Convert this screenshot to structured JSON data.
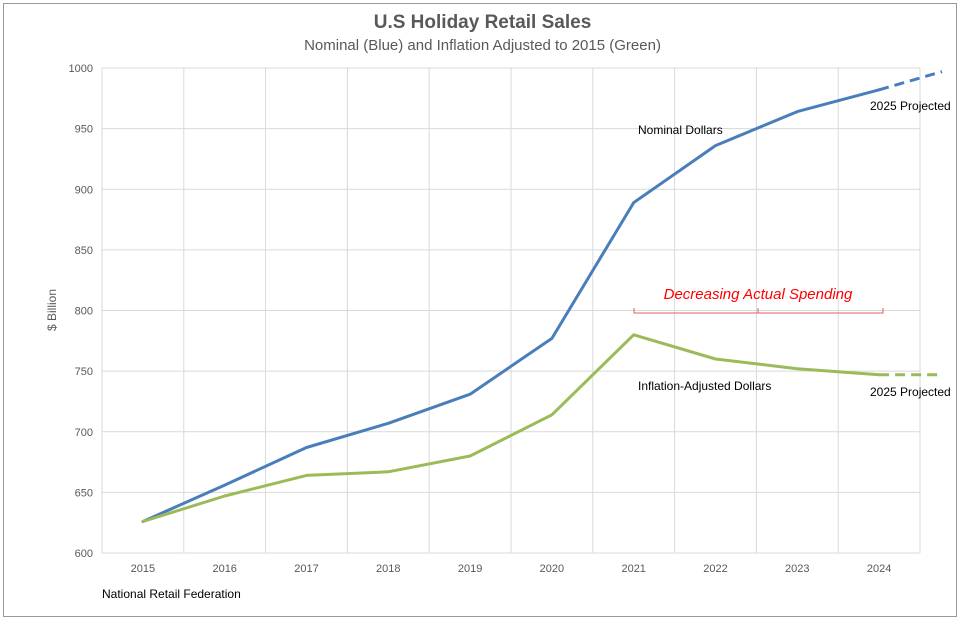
{
  "chart_data": {
    "type": "line",
    "title": "U.S Holiday Retail Sales",
    "subtitle": "Nominal (Blue) and Inflation Adjusted to 2015 (Green)",
    "xlabel": "",
    "ylabel": "$ Billion",
    "ylim": [
      600,
      1000
    ],
    "yticks": [
      600,
      650,
      700,
      750,
      800,
      850,
      900,
      950,
      1000
    ],
    "categories": [
      "2015",
      "2016",
      "2017",
      "2018",
      "2019",
      "2020",
      "2021",
      "2022",
      "2023",
      "2024"
    ],
    "series": [
      {
        "name": "Nominal Dollars",
        "color": "#4a7ebb",
        "values": [
          626,
          656,
          687,
          707,
          731,
          777,
          889,
          936,
          964,
          982
        ],
        "projected_value": 997
      },
      {
        "name": "Inflation-Adjusted Dollars",
        "color": "#9bbb59",
        "values": [
          626,
          647,
          664,
          667,
          680,
          714,
          780,
          760,
          752,
          747
        ],
        "projected_value": 747
      }
    ],
    "annotations": {
      "nominal_label": "Nominal Dollars",
      "adjusted_label": "Inflation-Adjusted Dollars",
      "projected_top": "2025 Projected",
      "projected_bottom": "2025 Projected",
      "decreasing": "Decreasing Actual Spending"
    },
    "grid": true,
    "source": "National Retail Federation"
  }
}
